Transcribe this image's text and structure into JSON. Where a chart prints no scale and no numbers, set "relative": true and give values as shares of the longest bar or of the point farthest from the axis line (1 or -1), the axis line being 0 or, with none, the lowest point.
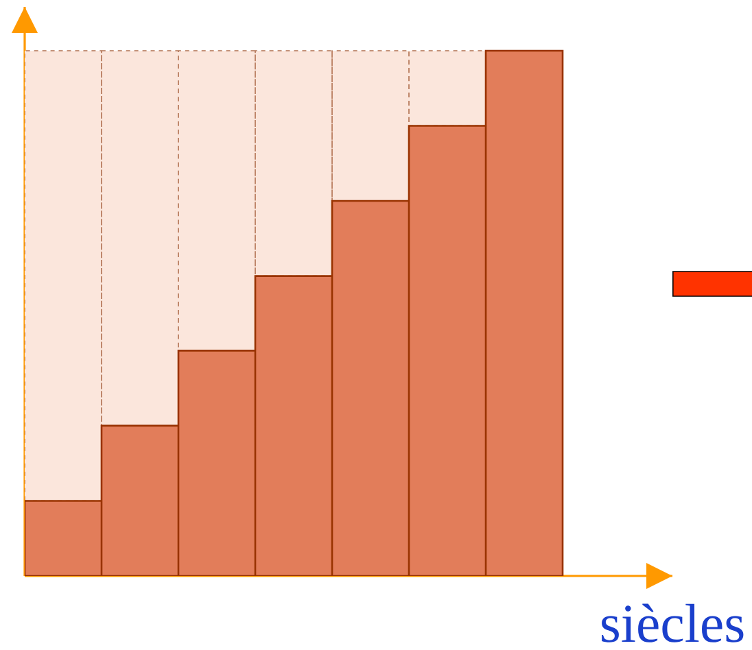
{
  "chart_data": {
    "type": "bar",
    "stacked": true,
    "relative": true,
    "xlabel": "siècles",
    "categories": [
      null,
      null,
      null,
      null,
      null,
      null,
      null
    ],
    "series": [
      {
        "color": "#e27d5a",
        "values": [
          0.143,
          0.286,
          0.429,
          0.571,
          0.714,
          0.857,
          1
        ]
      },
      {
        "color": "#fbe6dc",
        "values": [
          0.857,
          0.714,
          0.571,
          0.429,
          0.286,
          0.143,
          0
        ]
      }
    ]
  }
}
